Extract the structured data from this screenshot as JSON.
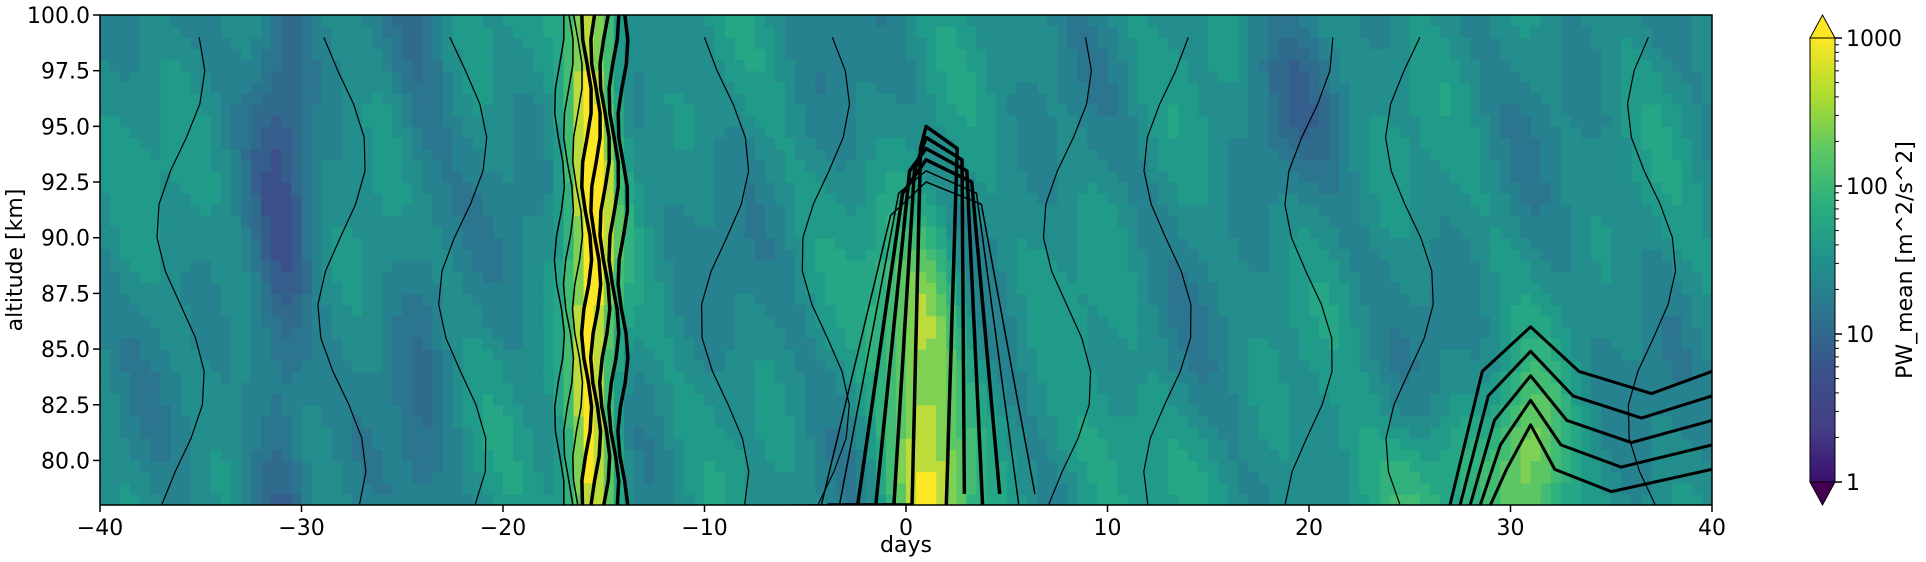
{
  "chart_data": {
    "type": "heatmap",
    "subtype": "filled-contour with line contours",
    "xlabel": "days",
    "ylabel": "altitude [km]",
    "xlim": [
      -40,
      40
    ],
    "ylim": [
      78,
      100
    ],
    "x_ticks": [
      "−40",
      "−30",
      "−20",
      "−10",
      "0",
      "10",
      "20",
      "30",
      "40"
    ],
    "y_ticks": [
      "80.0",
      "82.5",
      "85.0",
      "87.5",
      "90.0",
      "92.5",
      "95.0",
      "97.5",
      "100.0"
    ],
    "colorbar": {
      "label": "PW_mean [m^2/s^2]",
      "scale": "log",
      "range": [
        1,
        1000
      ],
      "ticks": [
        "1",
        "10",
        "100",
        "1000"
      ],
      "colormap": "viridis",
      "extend": "both"
    },
    "colors": {
      "low": "#440154",
      "mid": "#21918c",
      "high": "#fde725"
    },
    "features": [
      {
        "day": -16,
        "altitude_range": [
          78,
          100
        ],
        "level": "high"
      },
      {
        "day": 1,
        "altitude_range": [
          78,
          94
        ],
        "level": "high"
      },
      {
        "day": 31,
        "altitude_range": [
          78,
          86
        ],
        "level": "high"
      },
      {
        "day": -31,
        "altitude_range": [
          78,
          100
        ],
        "level": "low"
      }
    ]
  }
}
